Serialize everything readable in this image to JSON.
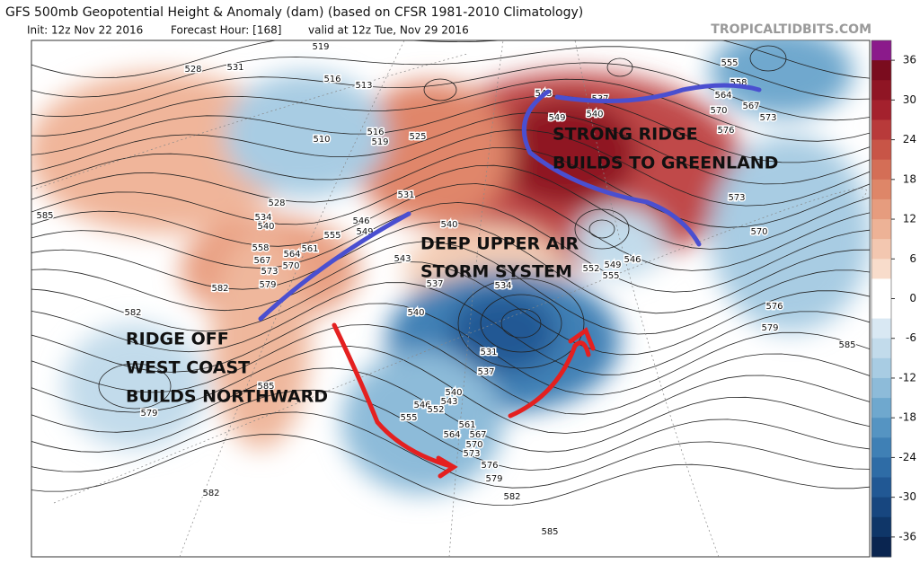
{
  "header": {
    "title": "GFS 500mb Geopotential Height & Anomaly (dam) (based on CFSR 1981-2010 Climatology)",
    "init": "Init: 12z Nov 22 2016",
    "forecast_hour": "Forecast Hour: [168]",
    "valid": "valid at 12z Tue, Nov 29 2016",
    "source": "TROPICALTIDBITS.COM"
  },
  "annotations": [
    "STRONG RIDGE",
    "BUILDS TO GREENLAND",
    "DEEP UPPER AIR",
    "STORM SYSTEM",
    "RIDGE OFF",
    "WEST COAST",
    "BUILDS NORTHWARD"
  ],
  "colorbar": {
    "ticks": [
      36,
      30,
      24,
      18,
      12,
      6,
      0,
      -6,
      -12,
      -18,
      -24,
      -30,
      -36
    ],
    "colors": [
      "#8b1a8b",
      "#7a0c1e",
      "#8f1524",
      "#a4212d",
      "#b83a3a",
      "#c85547",
      "#d46e56",
      "#de8668",
      "#e69c7e",
      "#edb296",
      "#f3c7b0",
      "#f8dccb",
      "#ffffff",
      "#ffffff",
      "#d9e8f3",
      "#c2dbeb",
      "#a8cce3",
      "#8dbbd9",
      "#6fa8ce",
      "#5594c2",
      "#3f80b5",
      "#2e6ca6",
      "#215894",
      "#17467f",
      "#0f3668",
      "#0a2550"
    ]
  },
  "contour_labels": [
    "528",
    "531",
    "519",
    "516",
    "513",
    "510",
    "516",
    "519",
    "525",
    "531",
    "528",
    "534",
    "540",
    "546",
    "549",
    "555",
    "558",
    "561",
    "564",
    "567",
    "570",
    "573",
    "579",
    "582",
    "585",
    "582",
    "579",
    "585",
    "582",
    "540",
    "537",
    "534",
    "531",
    "537",
    "540",
    "543",
    "546",
    "552",
    "555",
    "561",
    "564",
    "567",
    "570",
    "573",
    "576",
    "579",
    "582",
    "585",
    "543",
    "549",
    "537",
    "540",
    "546",
    "549",
    "552",
    "555",
    "555",
    "558",
    "564",
    "567",
    "570",
    "573",
    "576",
    "573",
    "570",
    "576",
    "579",
    "585",
    "543",
    "540"
  ]
}
